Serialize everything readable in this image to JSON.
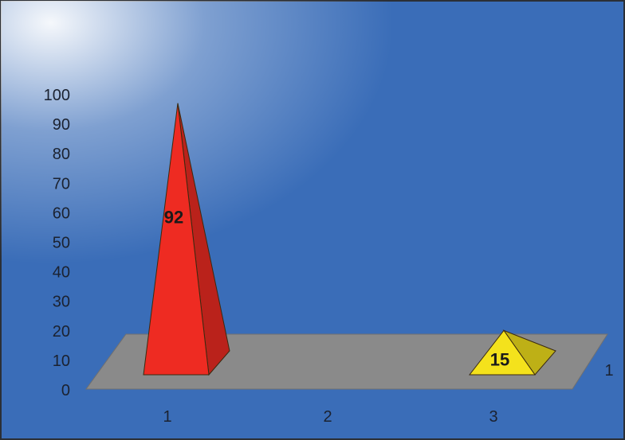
{
  "chart_data": {
    "type": "bar",
    "shape": "pyramid-3d",
    "categories": [
      "1",
      "2",
      "3"
    ],
    "series": [
      {
        "values": [
          92,
          0,
          15
        ]
      }
    ],
    "depth_axis_label": "1",
    "ylim": [
      0,
      100
    ],
    "yticks": [
      0,
      10,
      20,
      30,
      40,
      50,
      60,
      70,
      80,
      90,
      100
    ],
    "data_labels": [
      "92",
      "",
      "15"
    ],
    "grid": false,
    "legend": "none",
    "colors": {
      "background": "#3a6db8",
      "frame": "#2b2f36",
      "floor": "#8a8a8a",
      "pyramids": [
        "#ee2b22",
        "#ffffff",
        "#f4e21c"
      ]
    }
  }
}
